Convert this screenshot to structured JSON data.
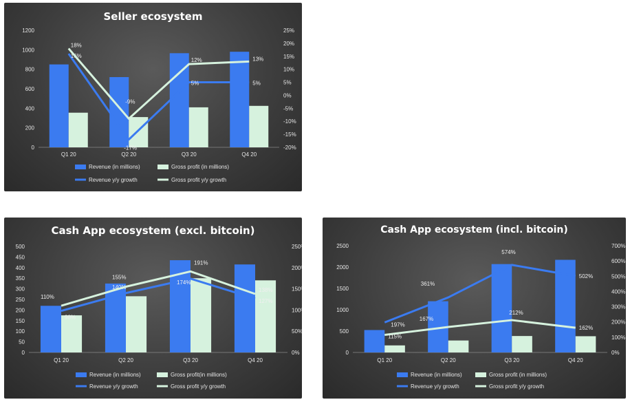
{
  "colors": {
    "revenue_bar": "#3b7bf0",
    "gross_bar": "#d6f2de",
    "revenue_line": "#3b7bf0",
    "gross_line": "#d6f2de"
  },
  "chart_data": [
    {
      "type": "bar",
      "title": "Seller ecosystem",
      "categories": [
        "Q1 20",
        "Q2 20",
        "Q3 20",
        "Q4 20"
      ],
      "ylim": [
        0,
        1200
      ],
      "y_ticks": [
        0,
        200,
        400,
        600,
        800,
        1000,
        1200
      ],
      "y2lim": [
        -20,
        25
      ],
      "y2_ticks": [
        "-20%",
        "-15%",
        "-10%",
        "-5%",
        "0%",
        "5%",
        "10%",
        "15%",
        "20%",
        "25%"
      ],
      "series": [
        {
          "name": "Revenue (in millions)",
          "type": "bar",
          "values": [
            850,
            720,
            965,
            980
          ]
        },
        {
          "name": "Gross profit (in millions)",
          "type": "bar",
          "values": [
            355,
            310,
            410,
            425
          ]
        },
        {
          "name": "Revenue y/y growth",
          "type": "line",
          "axis": "secondary",
          "values": [
            16,
            -17,
            5,
            5
          ],
          "labels": [
            "16%",
            "-17%",
            "5%",
            "5%"
          ]
        },
        {
          "name": "Gross profit y/y growth",
          "type": "line",
          "axis": "secondary",
          "values": [
            18,
            -9,
            12,
            13
          ],
          "labels": [
            "18%",
            "-9%",
            "12%",
            "13%"
          ]
        }
      ],
      "legend": "bottom",
      "grid": false
    },
    {
      "type": "bar",
      "title": "Cash App ecosystem (excl. bitcoin)",
      "categories": [
        "Q1 20",
        "Q2 20",
        "Q3 20",
        "Q4 20"
      ],
      "ylim": [
        0,
        500
      ],
      "y_ticks": [
        0,
        50,
        100,
        150,
        200,
        250,
        300,
        350,
        400,
        450,
        500
      ],
      "y2lim": [
        0,
        250
      ],
      "y2_ticks": [
        "0%",
        "50%",
        "100%",
        "150%",
        "200%",
        "250%"
      ],
      "series": [
        {
          "name": "Revenue (in millions)",
          "type": "bar",
          "values": [
            220,
            325,
            435,
            415
          ]
        },
        {
          "name": "Gross profit(in millions)",
          "type": "bar",
          "values": [
            175,
            265,
            350,
            340
          ]
        },
        {
          "name": "Revenue y/y growth",
          "type": "line",
          "axis": "secondary",
          "values": [
            98,
            140,
            174,
            127
          ],
          "labels": [
            "98%",
            "140%",
            "174%",
            "127%"
          ]
        },
        {
          "name": "Gross profit y/y growth",
          "type": "line",
          "axis": "secondary",
          "values": [
            110,
            155,
            191,
            138
          ],
          "labels": [
            "110%",
            "155%",
            "191%",
            "138%"
          ]
        }
      ],
      "legend": "bottom",
      "grid": false
    },
    {
      "type": "bar",
      "title": "Cash App ecosystem (incl. bitcoin)",
      "categories": [
        "Q1 20",
        "Q2 20",
        "Q3 20",
        "Q4 20"
      ],
      "ylim": [
        0,
        2500
      ],
      "y_ticks": [
        0,
        500,
        1000,
        1500,
        2000,
        2500
      ],
      "y2lim": [
        0,
        700
      ],
      "y2_ticks": [
        "0%",
        "100%",
        "200%",
        "300%",
        "400%",
        "500%",
        "600%",
        "700%"
      ],
      "series": [
        {
          "name": "Revenue (in millions)",
          "type": "bar",
          "values": [
            525,
            1200,
            2070,
            2170
          ]
        },
        {
          "name": "Gross profit (in millions)",
          "type": "bar",
          "values": [
            165,
            280,
            385,
            380
          ]
        },
        {
          "name": "Revenue y/y growth",
          "type": "line",
          "axis": "secondary",
          "values": [
            197,
            361,
            574,
            502
          ],
          "labels": [
            "197%",
            "361%",
            "574%",
            "502%"
          ]
        },
        {
          "name": "Gross profit y/y growth",
          "type": "line",
          "axis": "secondary",
          "values": [
            115,
            167,
            212,
            162
          ],
          "labels": [
            "115%",
            "167%",
            "212%",
            "162%"
          ]
        }
      ],
      "legend": "bottom",
      "grid": false
    }
  ]
}
